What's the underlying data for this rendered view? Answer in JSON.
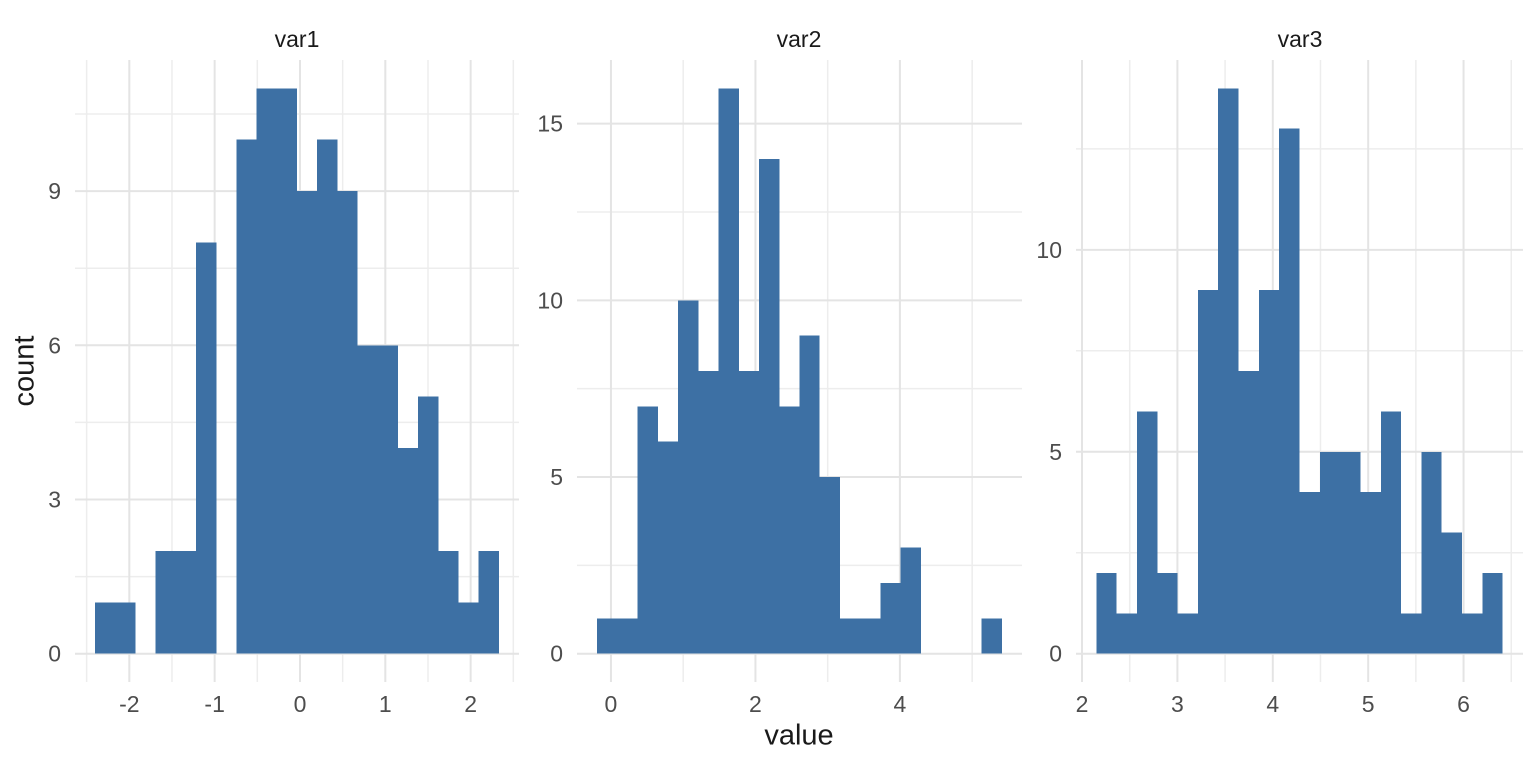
{
  "figure": {
    "background": "#ffffff",
    "bar_color": "#3D70A4",
    "grid_major_color": "#E4E4E4",
    "grid_minor_color": "#EDEDED",
    "tick_label_color": "#4D4D4D",
    "title_color": "#1a1a1a"
  },
  "chart_data": {
    "type": "bar",
    "subtype": "faceted-histogram",
    "xlabel": "value",
    "ylabel": "count",
    "legend": "none",
    "grid": "major+minor",
    "facets": [
      {
        "title": "var1",
        "bin_start": -2.4,
        "bin_width": 0.2365,
        "counts": [
          1,
          1,
          0,
          2,
          2,
          8,
          0,
          10,
          11,
          11,
          9,
          10,
          9,
          6,
          6,
          4,
          5,
          2,
          1,
          2
        ],
        "x_ticks": [
          -2,
          -1,
          0,
          1,
          2
        ],
        "y_ticks": [
          0,
          3,
          6,
          9
        ],
        "x_minor": [
          -2.5,
          -1.5,
          -0.5,
          0.5,
          1.5,
          2.5
        ],
        "y_minor": [
          1.5,
          4.5,
          7.5,
          10.5
        ],
        "x_range": [
          -2.6365,
          2.5665
        ],
        "y_range": [
          -0.55,
          11.55
        ]
      },
      {
        "title": "var2",
        "bin_start": -0.19,
        "bin_width": 0.28,
        "counts": [
          1,
          1,
          7,
          6,
          10,
          8,
          16,
          8,
          14,
          7,
          9,
          5,
          1,
          1,
          2,
          3,
          0,
          0,
          0,
          1
        ],
        "x_ticks": [
          0,
          2,
          4
        ],
        "y_ticks": [
          0,
          5,
          10,
          15
        ],
        "x_minor": [
          1,
          3,
          5
        ],
        "y_minor": [
          2.5,
          7.5,
          12.5
        ],
        "x_range": [
          -0.47,
          5.69
        ],
        "y_range": [
          -0.8,
          16.8
        ]
      },
      {
        "title": "var3",
        "bin_start": 2.15,
        "bin_width": 0.213,
        "counts": [
          2,
          1,
          6,
          2,
          1,
          9,
          14,
          7,
          9,
          13,
          4,
          5,
          5,
          4,
          6,
          1,
          5,
          3,
          1,
          2
        ],
        "x_ticks": [
          2,
          3,
          4,
          5,
          6
        ],
        "x_minor": [
          2.5,
          3.5,
          4.5,
          5.5,
          6.5
        ],
        "y_ticks": [
          0,
          5,
          10
        ],
        "y_minor": [
          2.5,
          7.5,
          12.5
        ],
        "x_range": [
          1.937,
          6.623
        ],
        "y_range": [
          -0.7,
          14.7
        ]
      }
    ]
  }
}
